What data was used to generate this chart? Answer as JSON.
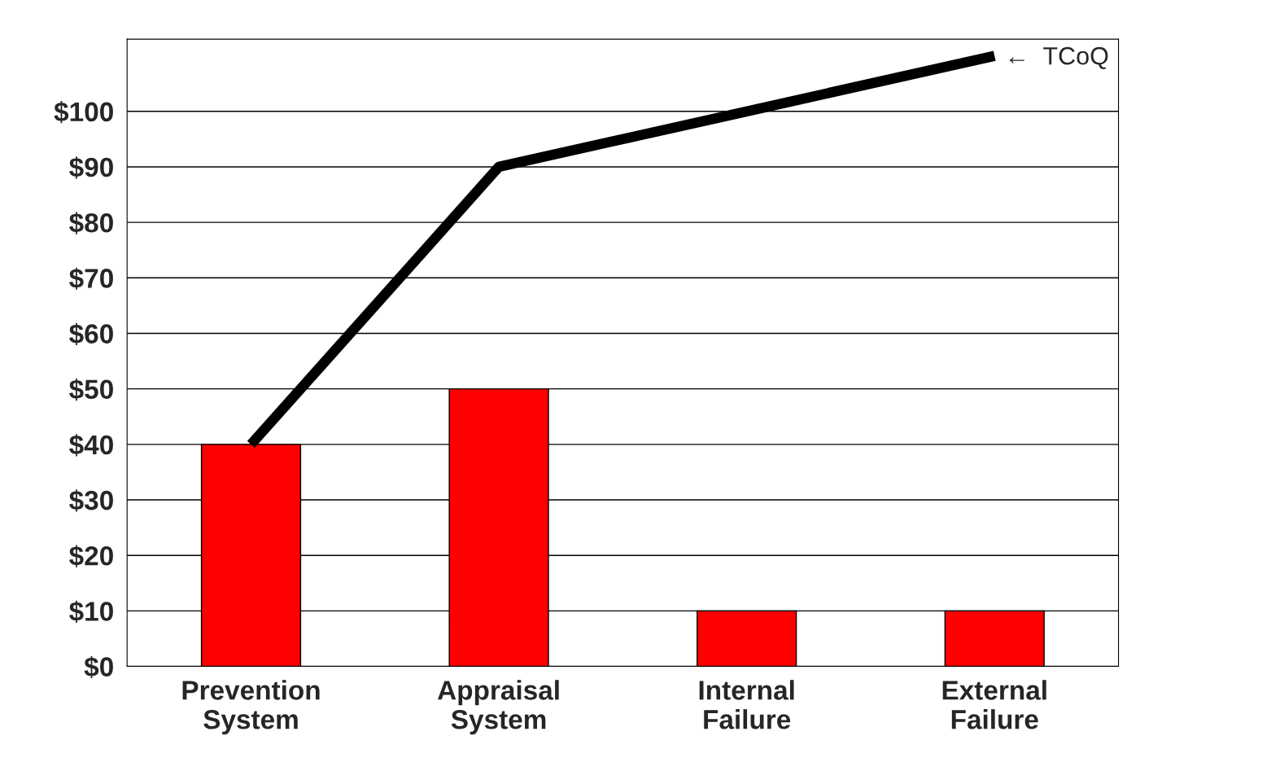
{
  "chart_data": {
    "type": "bar",
    "categories": [
      "Prevention\nSystem",
      "Appraisal\nSystem",
      "Internal\nFailure",
      "External\nFailure"
    ],
    "series": [
      {
        "color": "#ff0000",
        "values": [
          40,
          50,
          10,
          10
        ]
      },
      {
        "type": "line",
        "color": "#000000",
        "values": [
          40,
          90,
          100,
          110
        ]
      }
    ],
    "ylim": [
      0,
      113
    ],
    "yticks": [
      {
        "value": 0,
        "label": "$0"
      },
      {
        "value": 10,
        "label": "$10"
      },
      {
        "value": 20,
        "label": "$20"
      },
      {
        "value": 30,
        "label": "$30"
      },
      {
        "value": 40,
        "label": "$40"
      },
      {
        "value": 50,
        "label": "$50"
      },
      {
        "value": 60,
        "label": "$60"
      },
      {
        "value": 70,
        "label": "$70"
      },
      {
        "value": 80,
        "label": "$80"
      },
      {
        "value": 90,
        "label": "$90"
      },
      {
        "value": 100,
        "label": "$100"
      }
    ],
    "grid": "y",
    "annotations": [
      "←  TCoQ"
    ]
  }
}
